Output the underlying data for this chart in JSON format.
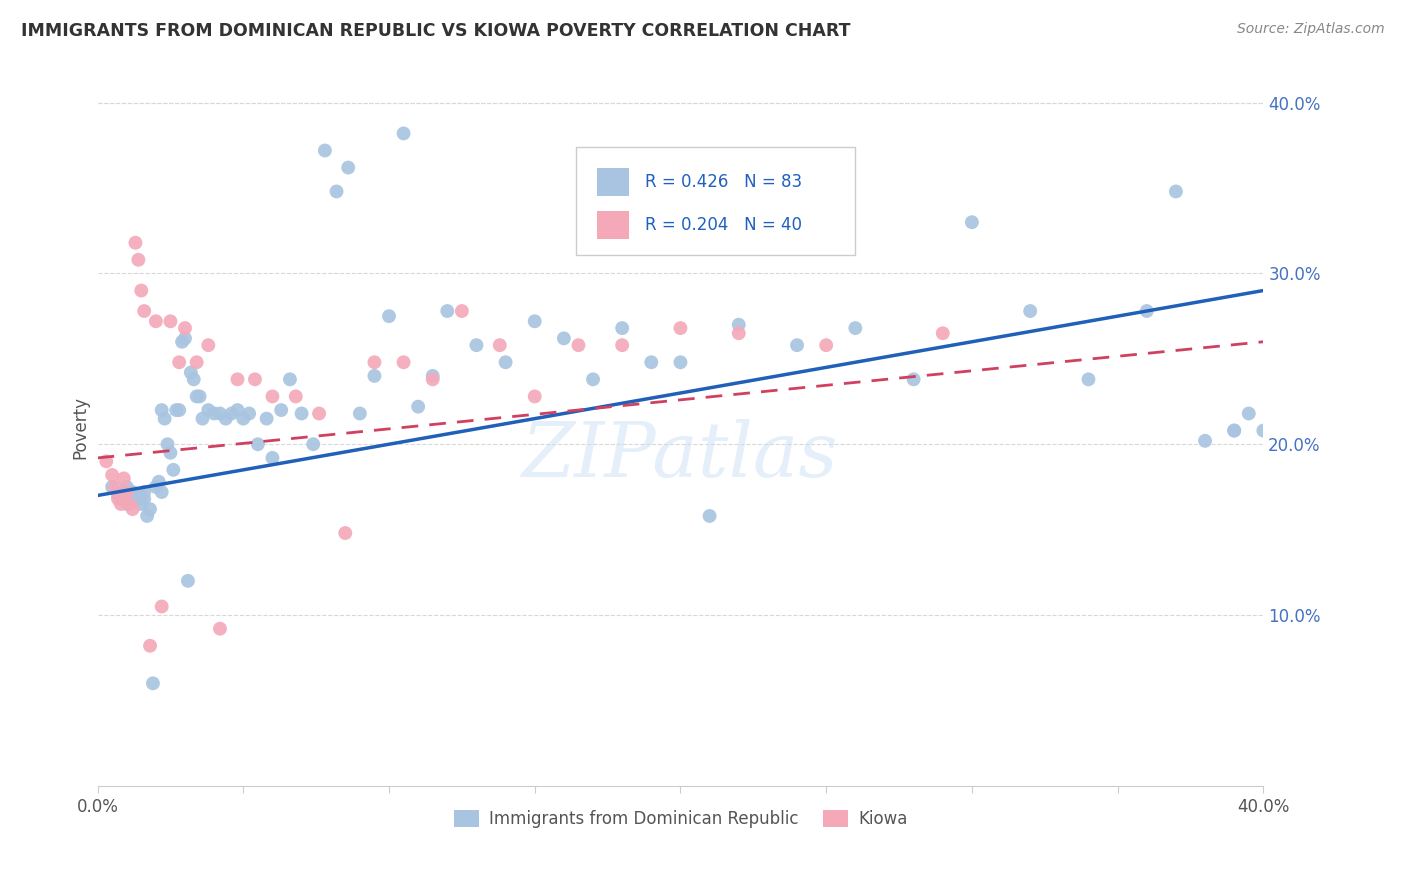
{
  "title": "IMMIGRANTS FROM DOMINICAN REPUBLIC VS KIOWA POVERTY CORRELATION CHART",
  "source_text": "Source: ZipAtlas.com",
  "ylabel": "Poverty",
  "xlim": [
    0.0,
    0.4
  ],
  "ylim": [
    0.0,
    0.42
  ],
  "xtick_pos": [
    0.0,
    0.05,
    0.1,
    0.15,
    0.2,
    0.25,
    0.3,
    0.35,
    0.4
  ],
  "xtick_labels": [
    "0.0%",
    "",
    "",
    "",
    "",
    "",
    "",
    "",
    "40.0%"
  ],
  "ytick_positions": [
    0.1,
    0.2,
    0.3,
    0.4
  ],
  "ytick_labels": [
    "10.0%",
    "20.0%",
    "30.0%",
    "40.0%"
  ],
  "series1_label": "Immigrants from Dominican Republic",
  "series1_color": "#a8c4e0",
  "series1_R": 0.426,
  "series1_N": 83,
  "series1_line_color": "#2060b8",
  "series2_label": "Kiowa",
  "series2_color": "#f4a8b8",
  "series2_R": 0.204,
  "series2_N": 40,
  "series2_line_color": "#d04060",
  "watermark": "ZIPatlas",
  "legend_text_color": "#2060c0",
  "blue_trend_y0": 0.17,
  "blue_trend_y1": 0.29,
  "pink_trend_y0": 0.192,
  "pink_trend_y1": 0.26,
  "blue_x": [
    0.005,
    0.007,
    0.008,
    0.009,
    0.01,
    0.01,
    0.011,
    0.012,
    0.013,
    0.014,
    0.015,
    0.015,
    0.016,
    0.016,
    0.017,
    0.018,
    0.019,
    0.02,
    0.021,
    0.022,
    0.022,
    0.023,
    0.024,
    0.025,
    0.026,
    0.027,
    0.028,
    0.029,
    0.03,
    0.031,
    0.032,
    0.033,
    0.034,
    0.035,
    0.036,
    0.038,
    0.04,
    0.042,
    0.044,
    0.046,
    0.048,
    0.05,
    0.052,
    0.055,
    0.058,
    0.06,
    0.063,
    0.066,
    0.07,
    0.074,
    0.078,
    0.082,
    0.086,
    0.09,
    0.095,
    0.1,
    0.105,
    0.11,
    0.115,
    0.12,
    0.13,
    0.14,
    0.15,
    0.16,
    0.17,
    0.18,
    0.19,
    0.2,
    0.21,
    0.22,
    0.24,
    0.26,
    0.28,
    0.3,
    0.32,
    0.34,
    0.36,
    0.37,
    0.38,
    0.39,
    0.39,
    0.395,
    0.4
  ],
  "blue_y": [
    0.175,
    0.17,
    0.168,
    0.172,
    0.175,
    0.165,
    0.168,
    0.172,
    0.17,
    0.168,
    0.17,
    0.165,
    0.168,
    0.172,
    0.158,
    0.162,
    0.06,
    0.175,
    0.178,
    0.172,
    0.22,
    0.215,
    0.2,
    0.195,
    0.185,
    0.22,
    0.22,
    0.26,
    0.262,
    0.12,
    0.242,
    0.238,
    0.228,
    0.228,
    0.215,
    0.22,
    0.218,
    0.218,
    0.215,
    0.218,
    0.22,
    0.215,
    0.218,
    0.2,
    0.215,
    0.192,
    0.22,
    0.238,
    0.218,
    0.2,
    0.372,
    0.348,
    0.362,
    0.218,
    0.24,
    0.275,
    0.382,
    0.222,
    0.24,
    0.278,
    0.258,
    0.248,
    0.272,
    0.262,
    0.238,
    0.268,
    0.248,
    0.248,
    0.158,
    0.27,
    0.258,
    0.268,
    0.238,
    0.33,
    0.278,
    0.238,
    0.278,
    0.348,
    0.202,
    0.208,
    0.208,
    0.218,
    0.208
  ],
  "pink_x": [
    0.003,
    0.005,
    0.006,
    0.007,
    0.008,
    0.009,
    0.01,
    0.011,
    0.012,
    0.013,
    0.014,
    0.015,
    0.016,
    0.018,
    0.02,
    0.022,
    0.025,
    0.028,
    0.03,
    0.034,
    0.038,
    0.042,
    0.048,
    0.054,
    0.06,
    0.068,
    0.076,
    0.085,
    0.095,
    0.105,
    0.115,
    0.125,
    0.138,
    0.15,
    0.165,
    0.18,
    0.2,
    0.22,
    0.25,
    0.29
  ],
  "pink_y": [
    0.19,
    0.182,
    0.175,
    0.168,
    0.165,
    0.18,
    0.172,
    0.165,
    0.162,
    0.318,
    0.308,
    0.29,
    0.278,
    0.082,
    0.272,
    0.105,
    0.272,
    0.248,
    0.268,
    0.248,
    0.258,
    0.092,
    0.238,
    0.238,
    0.228,
    0.228,
    0.218,
    0.148,
    0.248,
    0.248,
    0.238,
    0.278,
    0.258,
    0.228,
    0.258,
    0.258,
    0.268,
    0.265,
    0.258,
    0.265
  ]
}
